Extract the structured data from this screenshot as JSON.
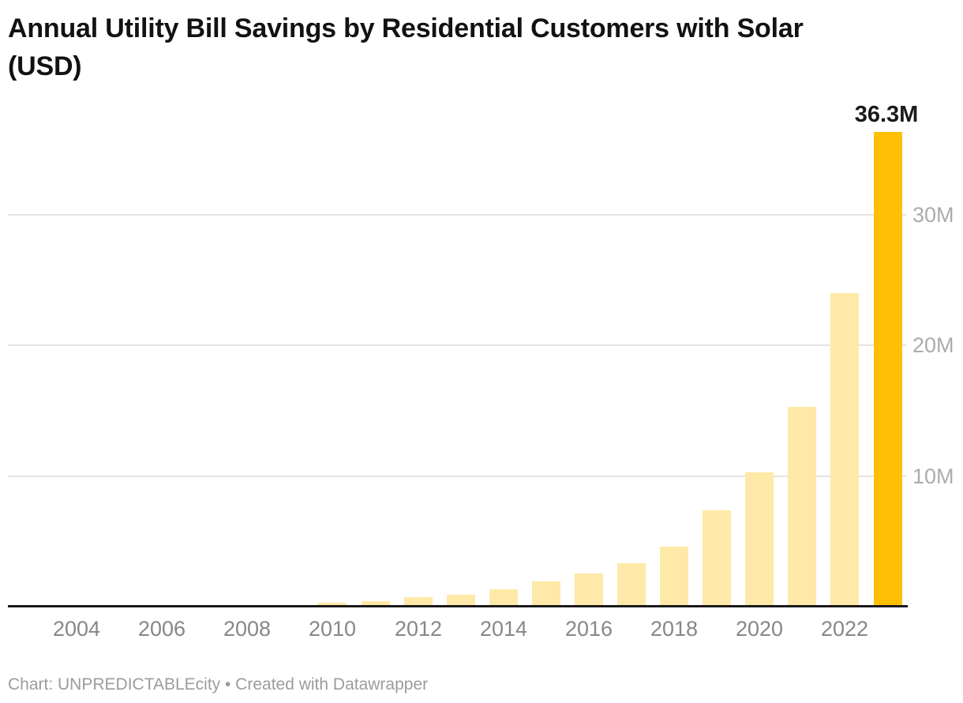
{
  "header": {
    "title": "Annual Utility Bill Savings by Residential Customers with Solar (USD)"
  },
  "footer": {
    "text": "Chart: UNPREDICTABLEcity • Created with Datawrapper"
  },
  "chart_data": {
    "type": "bar",
    "title": "Annual Utility Bill Savings by Residential Customers with Solar (USD)",
    "x": [
      2004,
      2005,
      2006,
      2007,
      2008,
      2009,
      2010,
      2011,
      2012,
      2013,
      2014,
      2015,
      2016,
      2017,
      2018,
      2019,
      2020,
      2021,
      2022,
      2023
    ],
    "values": [
      0,
      0,
      0,
      0,
      0,
      0.15,
      0.3,
      0.45,
      0.7,
      0.9,
      1.35,
      1.95,
      2.55,
      3.3,
      4.6,
      7.4,
      10.3,
      15.3,
      24.0,
      36.3
    ],
    "unit": "M",
    "ylabel": "",
    "xlabel": "",
    "ylim": [
      0,
      36.5
    ],
    "grid": true,
    "legend": "none",
    "ytick_side": "right",
    "yticks": [
      {
        "value": 10,
        "label": "10M"
      },
      {
        "value": 20,
        "label": "20M"
      },
      {
        "value": 30,
        "label": "30M"
      }
    ],
    "xticks": [
      {
        "value": 2004,
        "label": "2004"
      },
      {
        "value": 2006,
        "label": "2006"
      },
      {
        "value": 2008,
        "label": "2008"
      },
      {
        "value": 2010,
        "label": "2010"
      },
      {
        "value": 2012,
        "label": "2012"
      },
      {
        "value": 2014,
        "label": "2014"
      },
      {
        "value": 2016,
        "label": "2016"
      },
      {
        "value": 2018,
        "label": "2018"
      },
      {
        "value": 2020,
        "label": "2020"
      },
      {
        "value": 2022,
        "label": "2022"
      }
    ],
    "highlight_index": 19,
    "bar_label": {
      "index": 19,
      "text": "36.3M"
    },
    "colors": {
      "bar": "#ffe9a8",
      "highlight": "#fdc005",
      "grid": "#e4e4e4",
      "axis": "#1a1a1a",
      "xtick_label": "#878787",
      "ytick_label": "#ababab",
      "title": "#121212",
      "footer": "#9c9c9c"
    }
  }
}
